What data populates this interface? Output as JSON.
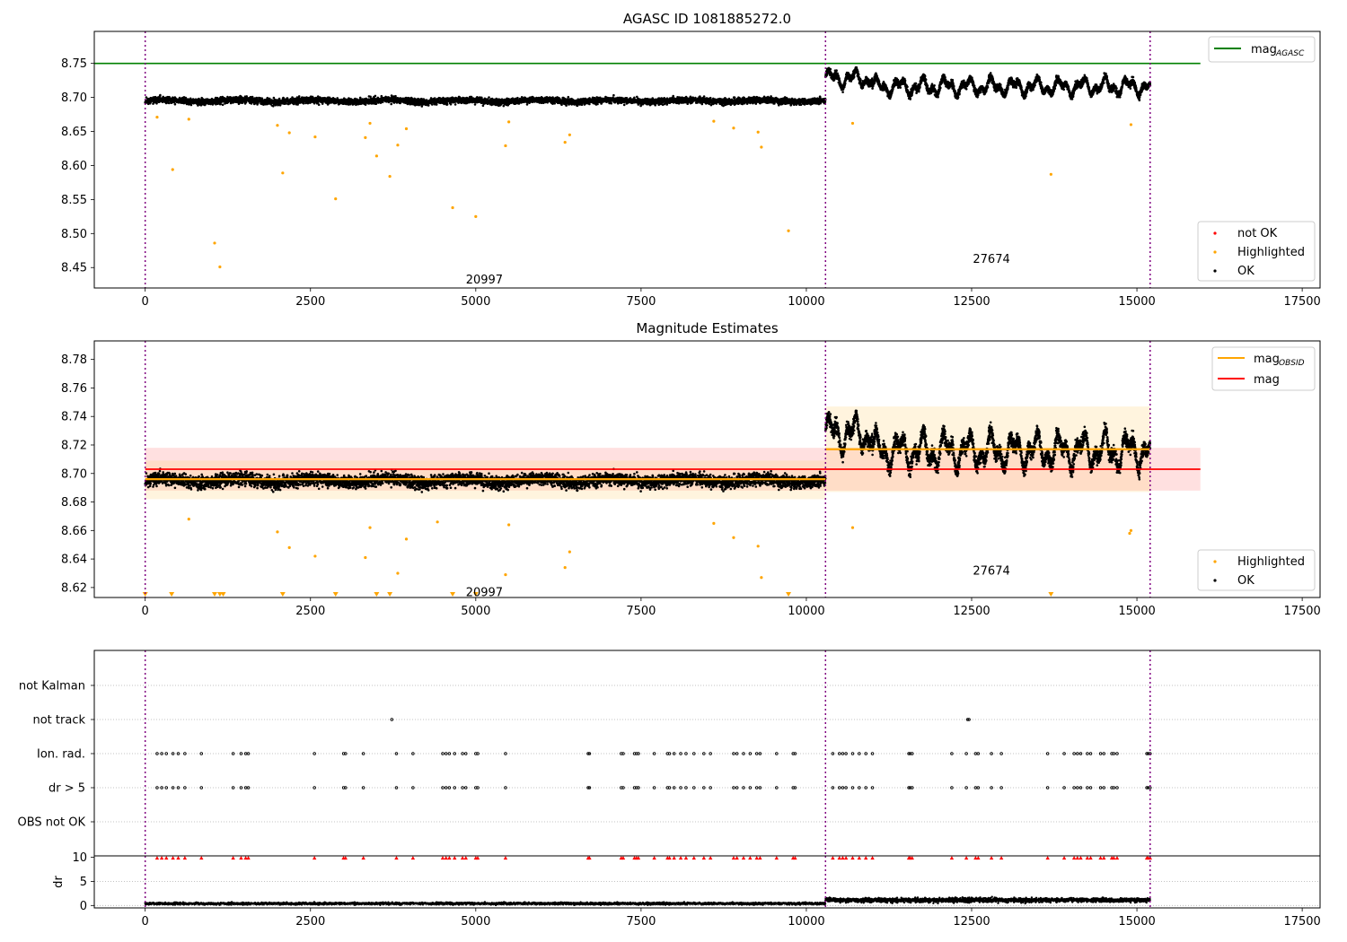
{
  "chart_data": [
    {
      "type": "scatter",
      "title": "AGASC ID 1081885272.0",
      "xlim": [
        -770,
        17770
      ],
      "ylim": [
        8.42,
        8.797
      ],
      "xticks": [
        0,
        2500,
        5000,
        7500,
        10000,
        12500,
        15000,
        17500
      ],
      "xtick_labels": [
        "0",
        "2500",
        "5000",
        "7500",
        "10000",
        "12500",
        "15000",
        "17500"
      ],
      "yticks": [
        8.45,
        8.5,
        8.55,
        8.6,
        8.65,
        8.7,
        8.75
      ],
      "ytick_labels": [
        "8.45",
        "8.50",
        "8.55",
        "8.60",
        "8.65",
        "8.70",
        "8.75"
      ],
      "obs_boundaries": [
        0,
        10290,
        15200
      ],
      "obs_labels": [
        {
          "text": "20997",
          "x": 5130,
          "y": 8.432
        },
        {
          "text": "27674",
          "x": 12800,
          "y": 8.462
        }
      ],
      "hlines": [
        {
          "name": "AGASC",
          "y": 8.75,
          "x0": -770,
          "x1": 15960,
          "color": "#008000"
        }
      ],
      "segments": [
        {
          "x0": 0,
          "x1": 10290,
          "center": 8.695,
          "amp": 0.008
        },
        {
          "x0": 10290,
          "x1": 15200,
          "center": 8.716,
          "amp": 0.016
        }
      ],
      "highlighted_outliers": [
        [
          415,
          8.594
        ],
        [
          1050,
          8.486
        ],
        [
          1130,
          8.451
        ],
        [
          2080,
          8.589
        ],
        [
          2180,
          8.648
        ],
        [
          2570,
          8.642
        ],
        [
          2880,
          8.551
        ],
        [
          3330,
          8.641
        ],
        [
          3500,
          8.614
        ],
        [
          3700,
          8.584
        ],
        [
          3820,
          8.63
        ],
        [
          3950,
          8.654
        ],
        [
          4650,
          8.538
        ],
        [
          5000,
          8.525
        ],
        [
          5450,
          8.629
        ],
        [
          5500,
          8.664
        ],
        [
          6350,
          8.634
        ],
        [
          6420,
          8.645
        ],
        [
          8600,
          8.665
        ],
        [
          8900,
          8.655
        ],
        [
          9270,
          8.649
        ],
        [
          9320,
          8.627
        ],
        [
          9730,
          8.504
        ],
        [
          10700,
          8.662
        ],
        [
          13700,
          8.587
        ],
        [
          14910,
          8.66
        ],
        [
          2000,
          8.659
        ],
        [
          3400,
          8.662
        ],
        [
          180,
          8.671
        ],
        [
          660,
          8.668
        ]
      ],
      "legend": {
        "lines": [
          {
            "label": "mag",
            "sub": "AGASC",
            "color": "#008000"
          }
        ],
        "points": [
          {
            "label": "not OK",
            "color": "#ff0000"
          },
          {
            "label": "Highlighted",
            "color": "#ffa500"
          },
          {
            "label": "OK",
            "color": "#000000"
          }
        ]
      }
    },
    {
      "type": "scatter",
      "title": "Magnitude Estimates",
      "xlim": [
        -770,
        17770
      ],
      "ylim": [
        8.613,
        8.793
      ],
      "xticks": [
        0,
        2500,
        5000,
        7500,
        10000,
        12500,
        15000,
        17500
      ],
      "xtick_labels": [
        "0",
        "2500",
        "5000",
        "7500",
        "10000",
        "12500",
        "15000",
        "17500"
      ],
      "yticks": [
        8.62,
        8.64,
        8.66,
        8.68,
        8.7,
        8.72,
        8.74,
        8.76,
        8.78
      ],
      "ytick_labels": [
        "8.62",
        "8.64",
        "8.66",
        "8.68",
        "8.70",
        "8.72",
        "8.74",
        "8.76",
        "8.78"
      ],
      "obs_boundaries": [
        0,
        10290,
        15200
      ],
      "obs_labels": [
        {
          "text": "20997",
          "x": 5130,
          "y": 8.6165
        },
        {
          "text": "27674",
          "x": 12800,
          "y": 8.6315
        }
      ],
      "mag_line": {
        "y": 8.703,
        "x0": -770,
        "x1": 15960,
        "band": [
          8.688,
          8.718
        ],
        "color": "#ff0000"
      },
      "obsid_lines": [
        {
          "x0": 0,
          "x1": 10290,
          "y": 8.696,
          "band": [
            8.682,
            8.709
          ]
        },
        {
          "x0": 10290,
          "x1": 15200,
          "y": 8.717,
          "band": [
            8.687,
            8.747
          ]
        }
      ],
      "segments": [
        {
          "x0": 0,
          "x1": 10290,
          "center": 8.695,
          "amp": 0.008
        },
        {
          "x0": 10290,
          "x1": 15200,
          "center": 8.716,
          "amp": 0.016
        }
      ],
      "highlighted_outliers": [
        [
          2180,
          8.648
        ],
        [
          2570,
          8.642
        ],
        [
          3330,
          8.641
        ],
        [
          3950,
          8.654
        ],
        [
          5450,
          8.629
        ],
        [
          5500,
          8.664
        ],
        [
          6350,
          8.634
        ],
        [
          6420,
          8.645
        ],
        [
          8600,
          8.665
        ],
        [
          8900,
          8.655
        ],
        [
          9270,
          8.649
        ],
        [
          9320,
          8.627
        ],
        [
          10700,
          8.662
        ],
        [
          14910,
          8.66
        ],
        [
          14890,
          8.658
        ],
        [
          2000,
          8.659
        ],
        [
          3400,
          8.662
        ],
        [
          660,
          8.668
        ],
        [
          3820,
          8.63
        ],
        [
          4420,
          8.666
        ]
      ],
      "off_scale_markers": [
        0,
        400,
        1050,
        1130,
        1180,
        2080,
        2880,
        3500,
        3700,
        4650,
        5000,
        9730,
        13700
      ],
      "legend": {
        "lines": [
          {
            "label": "mag",
            "sub": "OBSID",
            "color": "#ffa500"
          },
          {
            "label": "mag",
            "sub": "",
            "color": "#ff0000"
          }
        ],
        "points": [
          {
            "label": "Highlighted",
            "color": "#ffa500"
          },
          {
            "label": "OK",
            "color": "#000000"
          }
        ]
      }
    },
    {
      "type": "scatter",
      "xlim": [
        -770,
        17770
      ],
      "categories": [
        "not Kalman",
        "not track",
        "Ion. rad.",
        "dr > 5",
        "OBS not OK"
      ],
      "obs_boundaries": [
        0,
        10290,
        15200
      ],
      "not_track": [
        3730,
        12440,
        12460
      ],
      "flag_times": [
        180,
        250,
        320,
        420,
        500,
        600,
        850,
        1330,
        1450,
        1520,
        1560,
        2560,
        3000,
        3030,
        3300,
        3800,
        4050,
        4500,
        4550,
        4600,
        4680,
        4800,
        4850,
        5000,
        5030,
        5450,
        6700,
        6720,
        7200,
        7230,
        7400,
        7430,
        7460,
        7700,
        7900,
        7930,
        8000,
        8100,
        8180,
        8300,
        8450,
        8550,
        8900,
        8950,
        9050,
        9150,
        9250,
        9300,
        9550,
        9800,
        9830,
        10400,
        10500,
        10550,
        10600,
        10700,
        10800,
        10900,
        11000,
        11550,
        11570,
        11600,
        12200,
        12420,
        12560,
        12600,
        12800,
        12950,
        13650,
        13900,
        14050,
        14100,
        14150,
        14250,
        14300,
        14450,
        14500,
        14620,
        14650,
        14700,
        15150,
        15170,
        15200
      ]
    },
    {
      "type": "line",
      "ylabel": "dr",
      "xlim": [
        -770,
        17770
      ],
      "ylim": [
        -0.5,
        10.3
      ],
      "yticks": [
        0,
        5,
        10
      ],
      "ytick_labels": [
        "0",
        "5",
        "10"
      ],
      "xticks": [
        0,
        2500,
        5000,
        7500,
        10000,
        12500,
        15000,
        17500
      ],
      "xtick_labels": [
        "0",
        "2500",
        "5000",
        "7500",
        "10000",
        "12500",
        "15000",
        "17500"
      ],
      "obs_boundaries": [
        0,
        10290,
        15200
      ],
      "segments": [
        {
          "x0": 0,
          "x1": 10290,
          "level": 0.4
        },
        {
          "x0": 10290,
          "x1": 15200,
          "level": 1.1
        }
      ]
    }
  ]
}
